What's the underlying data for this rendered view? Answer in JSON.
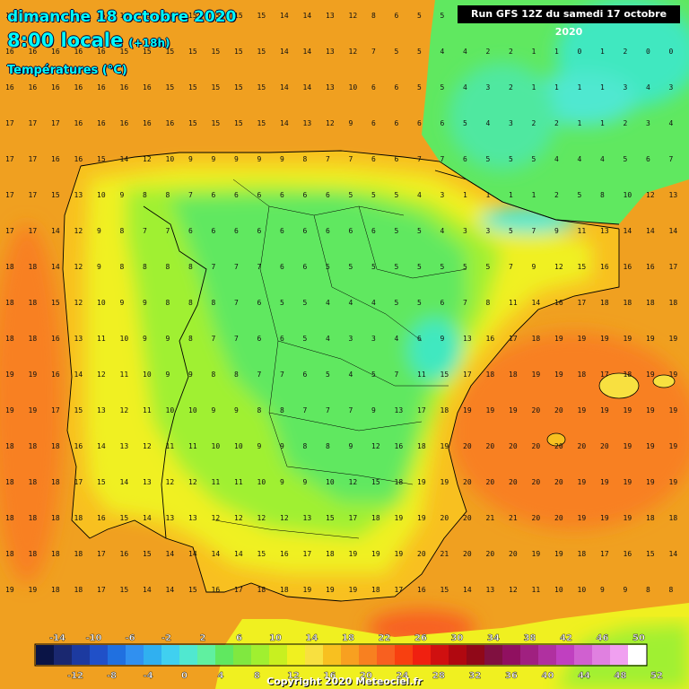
{
  "header": {
    "date": "dimanche 18 octobre 2020",
    "time": "8:00 locale",
    "time_offset": "(+18h)",
    "variable": "Températures (°C)"
  },
  "run_info": "Run GFS 12Z du samedi 17 octobre 2020",
  "copyright": "Copyright 2020 Meteociel.fr",
  "legend": {
    "top_labels": [
      "-14",
      "-10",
      "-6",
      "-2",
      "2",
      "6",
      "10",
      "14",
      "18",
      "22",
      "26",
      "30",
      "34",
      "38",
      "42",
      "46",
      "50"
    ],
    "bottom_labels": [
      "-12",
      "-8",
      "-4",
      "0",
      "4",
      "8",
      "12",
      "16",
      "20",
      "24",
      "28",
      "32",
      "36",
      "40",
      "44",
      "48",
      "52"
    ],
    "colors": [
      "#0a1446",
      "#1a2870",
      "#1c3aa0",
      "#2050c8",
      "#2070e0",
      "#3090f0",
      "#30b0f0",
      "#40d0f0",
      "#50e8d0",
      "#60f0a0",
      "#60e860",
      "#80e840",
      "#a0f030",
      "#c8f020",
      "#f0f020",
      "#f8e040",
      "#f8c020",
      "#f8a020",
      "#f88020",
      "#f86020",
      "#f84010",
      "#f02010",
      "#d01010",
      "#b00810",
      "#900818",
      "#801040",
      "#901060",
      "#a02080",
      "#b030a0",
      "#c040c0",
      "#d060d0",
      "#e080e0",
      "#f0a0f0",
      "#ffffff"
    ]
  },
  "map": {
    "sea_color": "#f0a020",
    "land_colors": {
      "cold": "#40e8c0",
      "cool": "#60e860",
      "mild": "#a0f030",
      "warm": "#f0f020",
      "coast": "#f8c020"
    },
    "grid_values": [
      [
        16,
        16,
        16,
        16,
        15,
        15,
        15,
        15,
        15,
        15,
        15,
        15,
        14,
        14,
        13,
        12,
        8,
        6,
        5,
        5,
        4,
        3,
        2,
        2,
        1,
        1,
        1,
        0,
        0,
        0
      ],
      [
        16,
        16,
        16,
        16,
        16,
        15,
        15,
        15,
        15,
        15,
        15,
        15,
        14,
        14,
        13,
        12,
        7,
        5,
        5,
        4,
        4,
        2,
        2,
        1,
        1,
        0,
        1,
        2,
        0,
        0
      ],
      [
        16,
        16,
        16,
        16,
        16,
        16,
        16,
        15,
        15,
        15,
        15,
        15,
        14,
        14,
        13,
        10,
        6,
        6,
        5,
        5,
        4,
        3,
        2,
        1,
        1,
        1,
        1,
        3,
        4,
        3
      ],
      [
        17,
        17,
        17,
        16,
        16,
        16,
        16,
        16,
        15,
        15,
        15,
        15,
        14,
        13,
        12,
        9,
        6,
        6,
        6,
        6,
        5,
        4,
        3,
        2,
        2,
        1,
        1,
        2,
        3,
        4
      ],
      [
        17,
        17,
        16,
        16,
        15,
        14,
        12,
        10,
        9,
        9,
        9,
        9,
        9,
        8,
        7,
        7,
        6,
        6,
        7,
        7,
        6,
        5,
        5,
        5,
        4,
        4,
        4,
        5,
        6,
        7
      ],
      [
        17,
        17,
        15,
        13,
        10,
        9,
        8,
        8,
        7,
        6,
        6,
        6,
        6,
        6,
        6,
        5,
        5,
        5,
        4,
        3,
        1,
        1,
        1,
        1,
        2,
        5,
        8,
        10,
        12,
        13
      ],
      [
        17,
        17,
        14,
        12,
        9,
        8,
        7,
        7,
        6,
        6,
        6,
        6,
        6,
        6,
        6,
        6,
        6,
        5,
        5,
        4,
        3,
        3,
        5,
        7,
        9,
        11,
        13,
        14,
        14,
        14
      ],
      [
        18,
        18,
        14,
        12,
        9,
        8,
        8,
        8,
        8,
        7,
        7,
        7,
        6,
        6,
        5,
        5,
        5,
        5,
        5,
        5,
        5,
        5,
        7,
        9,
        12,
        15,
        16,
        16,
        16,
        17
      ],
      [
        18,
        18,
        15,
        12,
        10,
        9,
        9,
        8,
        8,
        8,
        7,
        6,
        5,
        5,
        4,
        4,
        4,
        5,
        5,
        6,
        7,
        8,
        11,
        14,
        16,
        17,
        18,
        18,
        18,
        18
      ],
      [
        18,
        18,
        16,
        13,
        11,
        10,
        9,
        9,
        8,
        7,
        7,
        6,
        6,
        5,
        4,
        3,
        3,
        4,
        6,
        9,
        13,
        16,
        17,
        18,
        19,
        19,
        19,
        19,
        19,
        19
      ],
      [
        19,
        19,
        16,
        14,
        12,
        11,
        10,
        9,
        9,
        8,
        8,
        7,
        7,
        6,
        5,
        4,
        5,
        7,
        11,
        15,
        17,
        18,
        18,
        19,
        19,
        18,
        17,
        18,
        19,
        19
      ],
      [
        19,
        19,
        17,
        15,
        13,
        12,
        11,
        10,
        10,
        9,
        9,
        8,
        8,
        7,
        7,
        7,
        9,
        13,
        17,
        18,
        19,
        19,
        19,
        20,
        20,
        19,
        19,
        19,
        19,
        19
      ],
      [
        18,
        18,
        18,
        16,
        14,
        13,
        12,
        11,
        11,
        10,
        10,
        9,
        9,
        8,
        8,
        9,
        12,
        16,
        18,
        19,
        20,
        20,
        20,
        20,
        20,
        20,
        20,
        19,
        19,
        19
      ],
      [
        18,
        18,
        18,
        17,
        15,
        14,
        13,
        12,
        12,
        11,
        11,
        10,
        9,
        9,
        10,
        12,
        15,
        18,
        19,
        19,
        20,
        20,
        20,
        20,
        20,
        19,
        19,
        19,
        19,
        19
      ],
      [
        18,
        18,
        18,
        18,
        16,
        15,
        14,
        13,
        13,
        12,
        12,
        12,
        12,
        13,
        15,
        17,
        18,
        19,
        19,
        20,
        20,
        21,
        21,
        20,
        20,
        19,
        19,
        19,
        18,
        18
      ],
      [
        18,
        18,
        18,
        18,
        17,
        16,
        15,
        14,
        14,
        14,
        14,
        15,
        16,
        17,
        18,
        19,
        19,
        19,
        20,
        21,
        20,
        20,
        20,
        19,
        19,
        18,
        17,
        16,
        15,
        14
      ],
      [
        19,
        19,
        18,
        18,
        17,
        15,
        14,
        14,
        15,
        16,
        17,
        18,
        18,
        19,
        19,
        19,
        18,
        17,
        16,
        15,
        14,
        13,
        12,
        11,
        10,
        10,
        9,
        9,
        8,
        8
      ]
    ]
  }
}
